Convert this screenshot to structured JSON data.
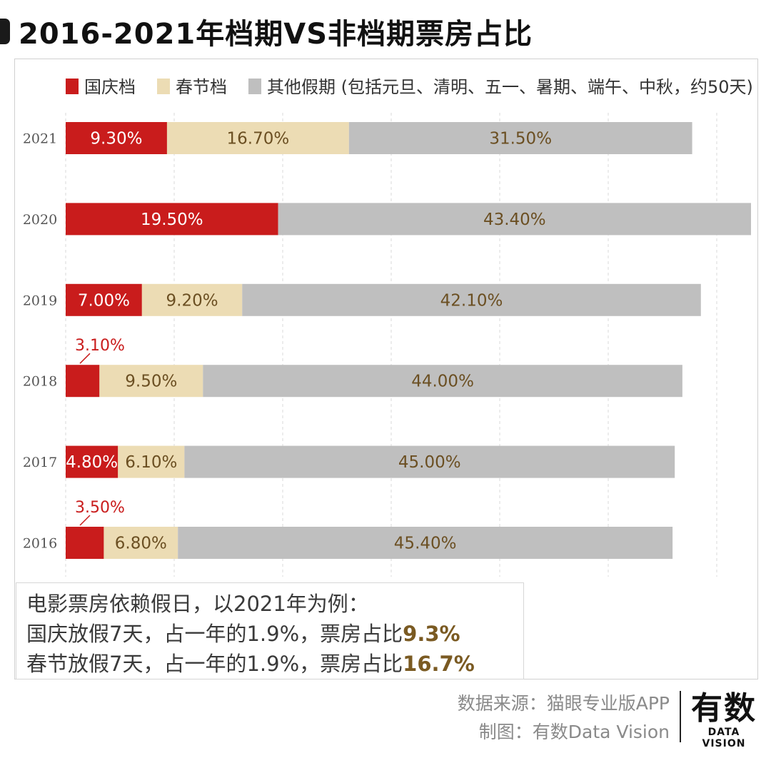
{
  "title": "2016-2021年档期VS非档期票房占比",
  "chart_data": {
    "type": "bar",
    "orientation": "horizontal",
    "stacked": true,
    "title": "2016-2021年档期VS非档期票房占比",
    "categories": [
      "2021",
      "2020",
      "2019",
      "2018",
      "2017",
      "2016"
    ],
    "series": [
      {
        "name": "国庆档",
        "color": "#c91c1c",
        "values": [
          9.3,
          19.5,
          7.0,
          3.1,
          4.8,
          3.5
        ],
        "labels": [
          "9.30%",
          "19.50%",
          "7.00%",
          "3.10%",
          "4.80%",
          "3.50%"
        ]
      },
      {
        "name": "春节档",
        "color": "#ecdcb4",
        "values": [
          16.7,
          0,
          9.2,
          9.5,
          6.1,
          6.8
        ],
        "labels": [
          "16.70%",
          "",
          "9.20%",
          "9.50%",
          "6.10%",
          "6.80%"
        ]
      },
      {
        "name": "其他假期 (包括元旦、清明、五一、暑期、端午、中秋，约50天)",
        "color": "#bfbfbf",
        "values": [
          31.5,
          43.4,
          42.1,
          44.0,
          45.0,
          45.4
        ],
        "labels": [
          "31.50%",
          "43.40%",
          "42.10%",
          "44.00%",
          "45.00%",
          "45.40%"
        ]
      }
    ],
    "xlim": [
      0,
      63
    ],
    "grid": true,
    "legend": "top-left"
  },
  "note": {
    "line1": "电影票房依赖假日，以2021年为例：",
    "line2_pre": "国庆放假7天，占一年的1.9%，票房占比",
    "line2_val": "9.3%",
    "line3_pre": "春节放假7天，占一年的1.9%，票房占比",
    "line3_val": "16.7%"
  },
  "source": {
    "data_source": "数据来源：猫眼专业版APP",
    "made_by": "制图：有数Data Vision"
  },
  "logo": {
    "main": "有数",
    "sub": "DATA VISION"
  },
  "watermark": {
    "main": "有数",
    "sub": "DATA VISION"
  }
}
